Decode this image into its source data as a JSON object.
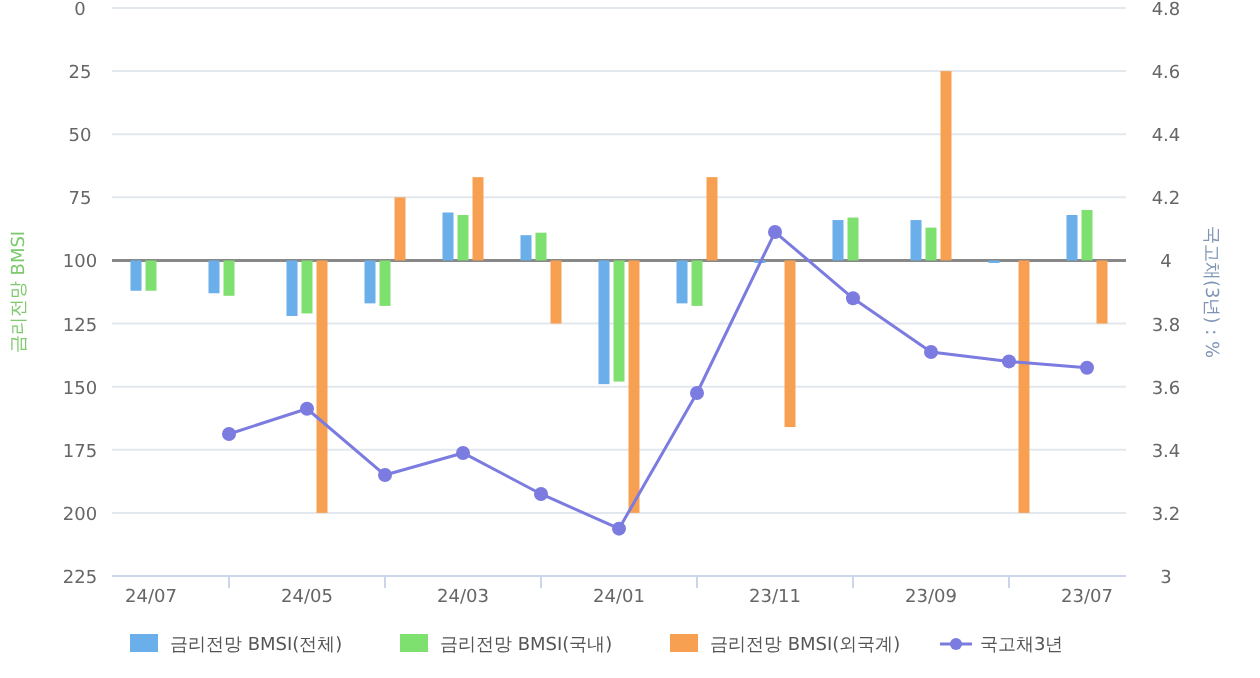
{
  "chart_data": {
    "type": "bar",
    "ylabel": "금리전망 BMSI",
    "y2label": "국고채(3년) : %",
    "categories": [
      "24/07",
      null,
      "24/05",
      null,
      "24/03",
      null,
      "24/01",
      null,
      "23/11",
      null,
      "23/09",
      null,
      "23/07"
    ],
    "ylim": [
      225,
      0
    ],
    "yticks": [
      0,
      25,
      50,
      75,
      100,
      125,
      150,
      175,
      200,
      225
    ],
    "y2lim": [
      3,
      4.8
    ],
    "y2ticks": [
      3,
      3.2,
      3.4,
      3.6,
      3.8,
      4,
      4.2,
      4.4,
      4.6,
      4.8
    ],
    "series": [
      {
        "name": "금리전망 BMSI(전체)",
        "color": "#6aaeea",
        "base": [
          100,
          100,
          100,
          100,
          100,
          100,
          100,
          100,
          100,
          100,
          100,
          100,
          100
        ],
        "values": [
          12,
          13,
          22,
          17,
          -19,
          -10,
          49,
          17,
          1,
          -16,
          -16,
          1,
          -18
        ]
      },
      {
        "name": "금리전망 BMSI(국내)",
        "color": "#7ee06e",
        "base": [
          100,
          100,
          100,
          100,
          100,
          100,
          100,
          100,
          null,
          100,
          100,
          null,
          100
        ],
        "values": [
          12,
          14,
          21,
          18,
          -18,
          -11,
          48,
          18,
          null,
          -17,
          -13,
          null,
          -20
        ]
      },
      {
        "name": "금리전망 BMSI(외국계)",
        "color": "#f7a051",
        "base": [
          null,
          null,
          100,
          100,
          100,
          100,
          100,
          100,
          100,
          null,
          100,
          100,
          100
        ],
        "values": [
          null,
          null,
          100,
          -25,
          -33,
          25,
          100,
          -33,
          66,
          null,
          -75,
          100,
          25
        ]
      },
      {
        "name": "국고채3년",
        "type": "line",
        "axis": "y2",
        "color": "#7b7be0",
        "marker": "circle",
        "values": [
          null,
          3.45,
          3.53,
          3.32,
          3.39,
          3.26,
          3.15,
          3.58,
          4.09,
          3.88,
          3.71,
          3.68,
          3.66
        ]
      }
    ],
    "ref_lines": [
      {
        "axis": "y",
        "value": 100,
        "color": "#888888"
      }
    ],
    "grid": "y",
    "legend": "bottom"
  }
}
